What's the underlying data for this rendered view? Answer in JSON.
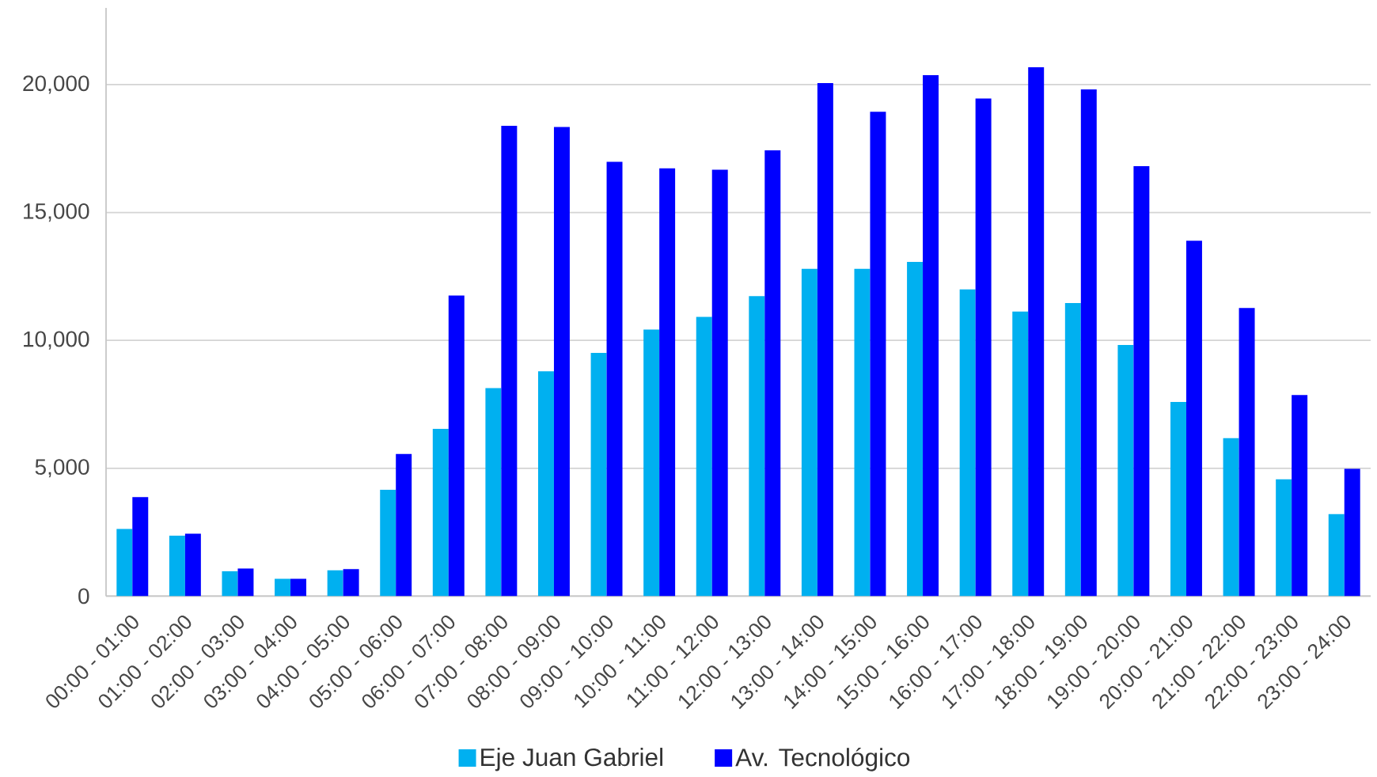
{
  "chart_data": {
    "type": "bar",
    "categories": [
      "00:00 - 01:00",
      "01:00 - 02:00",
      "02:00 - 03:00",
      "03:00 - 04:00",
      "04:00 - 05:00",
      "05:00 - 06:00",
      "06:00 - 07:00",
      "07:00 - 08:00",
      "08:00 - 09:00",
      "09:00 - 10:00",
      "10:00 - 11:00",
      "11:00 - 12:00",
      "12:00 - 13:00",
      "13:00 - 14:00",
      "14:00 - 15:00",
      "15:00 - 16:00",
      "16:00 - 17:00",
      "17:00 - 18:00",
      "18:00 - 19:00",
      "19:00 - 20:00",
      "20:00 - 21:00",
      "21:00 - 22:00",
      "22:00 - 23:00",
      "23:00 - 24:00"
    ],
    "series": [
      {
        "name": "Eje Juan Gabriel",
        "color": "#00b0f0",
        "values": [
          2630,
          2360,
          970,
          680,
          1010,
          4160,
          6540,
          8130,
          8790,
          9510,
          10420,
          10920,
          11730,
          12800,
          12800,
          13070,
          11990,
          11130,
          11460,
          9820,
          7590,
          6180,
          4570,
          3210
        ]
      },
      {
        "name": "Av. Tecnológico",
        "color": "#0000ff",
        "values": [
          3870,
          2440,
          1080,
          680,
          1060,
          5560,
          11750,
          18390,
          18340,
          16980,
          16730,
          16670,
          17430,
          20060,
          18940,
          20370,
          19460,
          20680,
          19810,
          16810,
          13900,
          11270,
          7860,
          4980
        ]
      }
    ],
    "ylim": [
      0,
      23000
    ],
    "yticks": [
      0,
      {
        "value": 5000,
        "label": "5,000"
      },
      {
        "value": 10000,
        "label": "10,000"
      },
      {
        "value": 15000,
        "label": "15,000"
      },
      {
        "value": 20000,
        "label": "20,000"
      }
    ],
    "grid": "y",
    "legend": "bottom"
  }
}
